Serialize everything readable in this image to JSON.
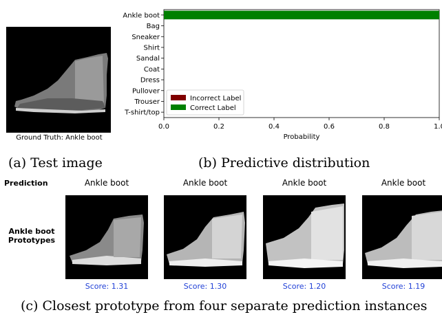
{
  "test_panel": {
    "ground_truth_label": "Ground Truth: Ankle boot",
    "caption": "(a) Test image"
  },
  "chart_data": {
    "type": "bar",
    "orientation": "horizontal",
    "categories": [
      "Ankle boot",
      "Bag",
      "Sneaker",
      "Shirt",
      "Sandal",
      "Coat",
      "Dress",
      "Pullover",
      "Trouser",
      "T-shirt/top"
    ],
    "values": [
      1.0,
      0,
      0,
      0,
      0,
      0,
      0,
      0,
      0,
      0
    ],
    "bar_colors": [
      "#008000",
      "#008000",
      "#008000",
      "#008000",
      "#008000",
      "#008000",
      "#008000",
      "#008000",
      "#008000",
      "#008000"
    ],
    "xlabel": "Probability",
    "xlim": [
      0,
      1.0
    ],
    "xticks": [
      "0.0",
      "0.2",
      "0.4",
      "0.6",
      "0.8",
      "1.0"
    ],
    "legend_position": "lower-left",
    "legend": [
      {
        "label": "Incorrect Label",
        "color": "#800000"
      },
      {
        "label": "Correct Label",
        "color": "#008000"
      }
    ],
    "caption": "(b) Predictive distribution"
  },
  "prototypes": {
    "prediction_header": "Prediction",
    "row_label": "Ankle boot\nPrototypes",
    "caption": "(c) Closest prototype from four separate prediction instances",
    "instances": [
      {
        "prediction": "Ankle boot",
        "score": "Score: 1.31"
      },
      {
        "prediction": "Ankle boot",
        "score": "Score: 1.30"
      },
      {
        "prediction": "Ankle boot",
        "score": "Score: 1.20"
      },
      {
        "prediction": "Ankle boot",
        "score": "Score: 1.19"
      }
    ]
  }
}
